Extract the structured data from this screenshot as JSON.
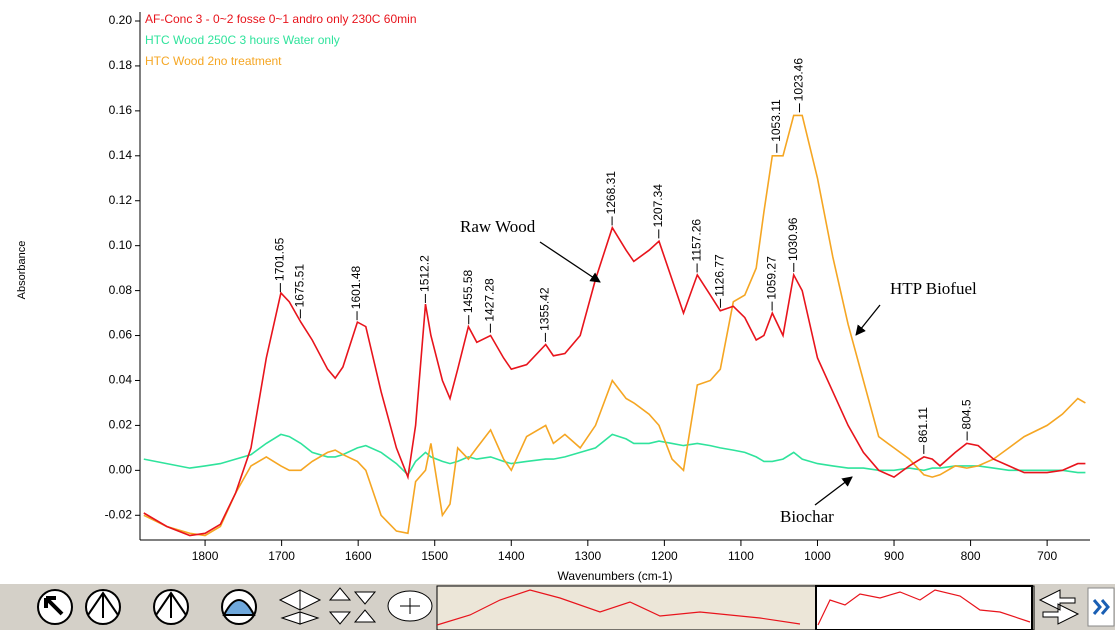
{
  "chart_data": {
    "type": "line",
    "x_label": "Wavenumbers (cm-1)",
    "y_label": "Absorbance",
    "x": [
      1880,
      1850,
      1820,
      1800,
      1780,
      1760,
      1740,
      1720,
      1701,
      1690,
      1675,
      1660,
      1640,
      1630,
      1620,
      1601,
      1590,
      1570,
      1550,
      1535,
      1525,
      1512,
      1505,
      1490,
      1480,
      1470,
      1456,
      1445,
      1427,
      1410,
      1400,
      1380,
      1355,
      1345,
      1330,
      1310,
      1290,
      1268,
      1250,
      1240,
      1220,
      1207,
      1190,
      1175,
      1157,
      1140,
      1127,
      1110,
      1095,
      1080,
      1070,
      1059,
      1045,
      1031,
      1020,
      1000,
      980,
      960,
      940,
      920,
      900,
      880,
      861,
      850,
      840,
      820,
      805,
      790,
      770,
      750,
      730,
      700,
      680,
      660,
      650
    ],
    "series": [
      {
        "name": "AF-Conc 3 - 0~2 fosse 0~1 andro  only 230C 60min",
        "color": "#e8141c",
        "values": [
          -0.019,
          -0.025,
          -0.029,
          -0.028,
          -0.024,
          -0.01,
          0.01,
          0.05,
          0.079,
          0.075,
          0.066,
          0.058,
          0.045,
          0.041,
          0.046,
          0.066,
          0.064,
          0.035,
          0.01,
          -0.003,
          0.02,
          0.074,
          0.06,
          0.04,
          0.032,
          0.045,
          0.064,
          0.057,
          0.06,
          0.05,
          0.045,
          0.047,
          0.056,
          0.051,
          0.052,
          0.06,
          0.085,
          0.108,
          0.098,
          0.093,
          0.098,
          0.102,
          0.085,
          0.07,
          0.087,
          0.078,
          0.071,
          0.073,
          0.068,
          0.058,
          0.06,
          0.07,
          0.06,
          0.087,
          0.08,
          0.05,
          0.035,
          0.02,
          0.008,
          0.0,
          -0.003,
          0.002,
          0.006,
          0.005,
          0.002,
          0.008,
          0.012,
          0.011,
          0.005,
          0.002,
          -0.001,
          -0.001,
          0.0,
          0.003,
          0.003
        ],
        "peaks": [
          1701.65,
          1675.51,
          1601.48,
          1512.2,
          1455.58,
          1427.28,
          1355.42,
          1268.31,
          1207.34,
          1157.26,
          1126.77,
          1059.27,
          1030.96,
          861.11,
          804.5
        ]
      },
      {
        "name": "HTC Wood 250C 3 hours Water only",
        "color": "#2fe39c",
        "values": [
          0.005,
          0.003,
          0.001,
          0.002,
          0.003,
          0.005,
          0.007,
          0.012,
          0.016,
          0.015,
          0.012,
          0.008,
          0.006,
          0.006,
          0.007,
          0.01,
          0.011,
          0.008,
          0.003,
          -0.002,
          0.004,
          0.008,
          0.006,
          0.004,
          0.003,
          0.004,
          0.006,
          0.005,
          0.006,
          0.004,
          0.003,
          0.004,
          0.005,
          0.005,
          0.006,
          0.008,
          0.01,
          0.016,
          0.014,
          0.012,
          0.012,
          0.013,
          0.012,
          0.011,
          0.012,
          0.011,
          0.01,
          0.009,
          0.008,
          0.006,
          0.004,
          0.004,
          0.005,
          0.008,
          0.005,
          0.003,
          0.002,
          0.001,
          0.001,
          0.0,
          0.0,
          0.001,
          0.0,
          0.001,
          0.001,
          0.002,
          0.002,
          0.002,
          0.001,
          0.0,
          0.0,
          0.0,
          0.0,
          -0.001,
          -0.001
        ]
      },
      {
        "name": "HTC Wood 2no treatment",
        "color": "#f5a623",
        "values": [
          -0.02,
          -0.025,
          -0.028,
          -0.029,
          -0.025,
          -0.01,
          0.002,
          0.006,
          0.002,
          0.0,
          0.0,
          0.004,
          0.008,
          0.009,
          0.007,
          0.004,
          0.0,
          -0.02,
          -0.027,
          -0.028,
          -0.005,
          0.0,
          0.012,
          -0.02,
          -0.015,
          0.01,
          0.005,
          0.01,
          0.018,
          0.005,
          0.0,
          0.015,
          0.02,
          0.012,
          0.016,
          0.01,
          0.02,
          0.04,
          0.032,
          0.03,
          0.025,
          0.02,
          0.005,
          0.0,
          0.038,
          0.04,
          0.045,
          0.075,
          0.078,
          0.09,
          0.115,
          0.14,
          0.14,
          0.158,
          0.158,
          0.13,
          0.095,
          0.065,
          0.04,
          0.015,
          0.01,
          0.005,
          -0.002,
          -0.003,
          -0.002,
          0.002,
          0.001,
          0.002,
          0.005,
          0.01,
          0.015,
          0.02,
          0.025,
          0.032,
          0.03
        ],
        "peaks": [
          1053.11,
          1023.46
        ]
      }
    ],
    "annotations": [
      "Raw Wood",
      "HTP Biofuel",
      "Biochar"
    ],
    "xlim": [
      1885,
      644
    ],
    "ylim": [
      -0.031,
      0.204
    ],
    "xticks": [
      1800,
      1700,
      1600,
      1500,
      1400,
      1300,
      1200,
      1100,
      1000,
      900,
      800,
      700
    ],
    "yticks": [
      {
        "value": -0.02,
        "label": "-0.02"
      },
      {
        "value": 0,
        "label": "0.00"
      },
      {
        "value": 0.02,
        "label": "0.02"
      },
      {
        "value": 0.04,
        "label": "0.04"
      },
      {
        "value": 0.06,
        "label": "0.06"
      },
      {
        "value": 0.08,
        "label": "0.08"
      },
      {
        "value": 0.1,
        "label": "0.10"
      },
      {
        "value": 0.12,
        "label": "0.12"
      },
      {
        "value": 0.14,
        "label": "0.14"
      },
      {
        "value": 0.16,
        "label": "0.16"
      },
      {
        "value": 0.18,
        "label": "0.18"
      },
      {
        "value": 0.2,
        "label": "0.20"
      }
    ],
    "grid": false
  }
}
